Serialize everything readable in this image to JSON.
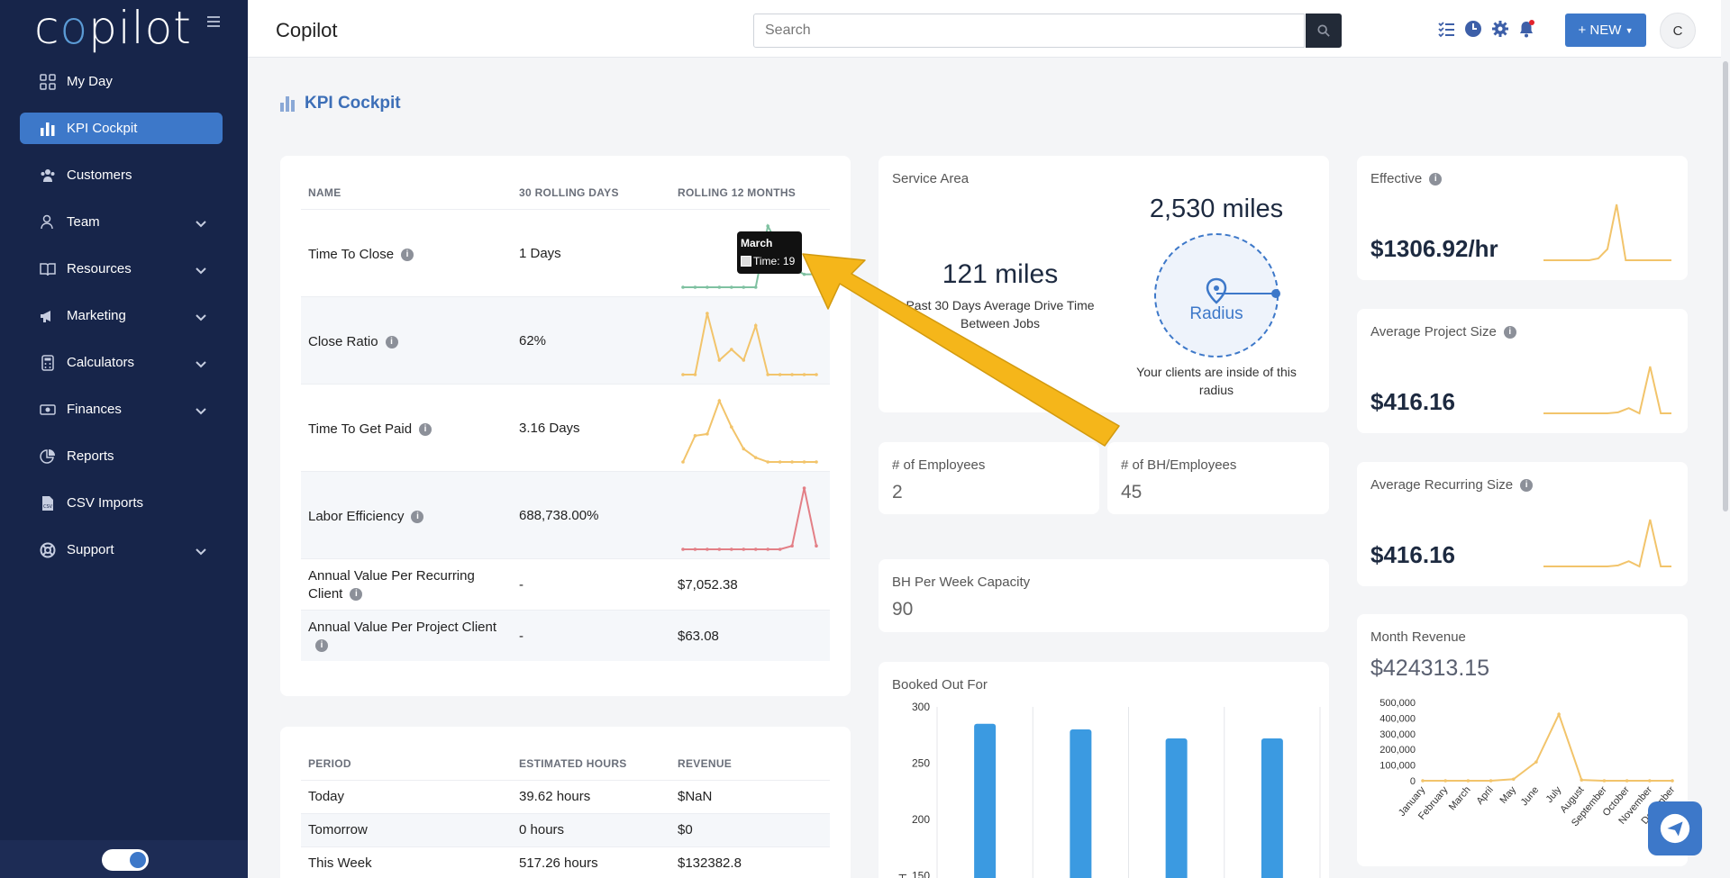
{
  "sidebar": {
    "logo": "copilot",
    "items": [
      {
        "label": "My Day",
        "icon": "grid-icon",
        "expandable": false,
        "active": false
      },
      {
        "label": "KPI Cockpit",
        "icon": "bar-chart-icon",
        "expandable": false,
        "active": true
      },
      {
        "label": "Customers",
        "icon": "users-icon",
        "expandable": false,
        "active": false
      },
      {
        "label": "Team",
        "icon": "user-icon",
        "expandable": true,
        "active": false
      },
      {
        "label": "Resources",
        "icon": "book-icon",
        "expandable": true,
        "active": false
      },
      {
        "label": "Marketing",
        "icon": "megaphone-icon",
        "expandable": true,
        "active": false
      },
      {
        "label": "Calculators",
        "icon": "calculator-icon",
        "expandable": true,
        "active": false
      },
      {
        "label": "Finances",
        "icon": "money-icon",
        "expandable": true,
        "active": false
      },
      {
        "label": "Reports",
        "icon": "pie-chart-icon",
        "expandable": false,
        "active": false
      },
      {
        "label": "CSV Imports",
        "icon": "file-csv-icon",
        "expandable": false,
        "active": false
      },
      {
        "label": "Support",
        "icon": "lifebuoy-icon",
        "expandable": true,
        "active": false
      }
    ]
  },
  "topbar": {
    "title": "Copilot",
    "search_placeholder": "Search",
    "new_label": "+ NEW",
    "avatar": "C"
  },
  "page": {
    "title": "KPI Cockpit"
  },
  "kpi_table": {
    "headers": [
      "NAME",
      "30 ROLLING DAYS",
      "ROLLING 12 MONTHS"
    ],
    "rows": [
      {
        "name": "Time To Close",
        "rolling30": "1 Days",
        "rolling12": "",
        "spark_color": "#7fc1a1",
        "spark": [
          0,
          0,
          0,
          0,
          0,
          0,
          0,
          19,
          12,
          6,
          4,
          4
        ]
      },
      {
        "name": "Close Ratio",
        "rolling30": "62%",
        "rolling12": "",
        "spark_color": "#f2c46b",
        "spark": [
          0,
          0,
          85,
          20,
          35,
          20,
          68,
          0,
          0,
          0,
          0,
          0
        ]
      },
      {
        "name": "Time To Get Paid",
        "rolling30": "3.16 Days",
        "rolling12": "",
        "spark_color": "#f2c46b",
        "spark": [
          0,
          30,
          32,
          70,
          40,
          15,
          5,
          0,
          0,
          0,
          0,
          0
        ]
      },
      {
        "name": "Labor Efficiency",
        "rolling30": "688,738.00%",
        "rolling12": "",
        "spark_color": "#e37f86",
        "spark": [
          0,
          0,
          0,
          0,
          0,
          0,
          0,
          0,
          0,
          5,
          90,
          5
        ]
      },
      {
        "name": "Annual Value Per Recurring Client",
        "rolling30": "-",
        "rolling12": "$7,052.38"
      },
      {
        "name": "Annual Value Per Project Client",
        "rolling30": "-",
        "rolling12": "$63.08"
      }
    ]
  },
  "tooltip": {
    "title": "March",
    "value": "Time: 19"
  },
  "period_table": {
    "headers": [
      "PERIOD",
      "ESTIMATED HOURS",
      "REVENUE"
    ],
    "rows": [
      {
        "period": "Today",
        "hours": "39.62 hours",
        "revenue": "$NaN"
      },
      {
        "period": "Tomorrow",
        "hours": "0 hours",
        "revenue": "$0"
      },
      {
        "period": "This Week",
        "hours": "517.26 hours",
        "revenue": "$132382.8"
      }
    ]
  },
  "service_area": {
    "label": "Service Area",
    "drive_miles": "121 miles",
    "drive_caption_1": "Past 30 Days Average Drive Time",
    "drive_caption_2": "Between Jobs",
    "radius_miles": "2,530 miles",
    "radius_label": "Radius",
    "radius_caption_1": "Your clients are inside of this",
    "radius_caption_2": "radius"
  },
  "employees": {
    "label": "# of Employees",
    "value": "2"
  },
  "bh_employees": {
    "label": "# of BH/Employees",
    "value": "45"
  },
  "bh_week": {
    "label": "BH Per Week Capacity",
    "value": "90"
  },
  "booked": {
    "label": "Booked Out For",
    "chart_data": {
      "type": "bar",
      "ylabel": "BH",
      "yticks": [
        150,
        200,
        250,
        300
      ],
      "ylim": [
        100,
        300
      ],
      "values": [
        285,
        280,
        272,
        272
      ],
      "color": "#3b9ae1"
    }
  },
  "effective": {
    "label": "Effective",
    "value": "$1306.92/hr",
    "spark": [
      0,
      0,
      0,
      0,
      0,
      0,
      2,
      12,
      60,
      0,
      0,
      0,
      0,
      0,
      0
    ]
  },
  "avg_project": {
    "label": "Average Project Size",
    "value": "$416.16",
    "spark": [
      0,
      0,
      0,
      0,
      0,
      0,
      0,
      1,
      5,
      0,
      45,
      0,
      0
    ]
  },
  "avg_recurring": {
    "label": "Average Recurring Size",
    "value": "$416.16",
    "spark": [
      0,
      0,
      0,
      0,
      0,
      0,
      0,
      1,
      5,
      0,
      45,
      0,
      0
    ]
  },
  "month_revenue": {
    "label": "Month Revenue",
    "value": "$424313.15",
    "chart_data": {
      "type": "line",
      "categories": [
        "January",
        "February",
        "March",
        "April",
        "May",
        "June",
        "July",
        "August",
        "September",
        "October",
        "November",
        "December"
      ],
      "values": [
        0,
        0,
        0,
        0,
        10000,
        120000,
        424313,
        5000,
        0,
        0,
        0,
        0
      ],
      "yticks": [
        "0",
        "100,000",
        "200,000",
        "300,000",
        "400,000",
        "500,000"
      ],
      "ylim": [
        0,
        500000
      ],
      "color": "#f2c46b"
    }
  },
  "colors": {
    "accent": "#3d78c9",
    "sidebar": "#17254a",
    "arrow": "#f5b61a"
  }
}
